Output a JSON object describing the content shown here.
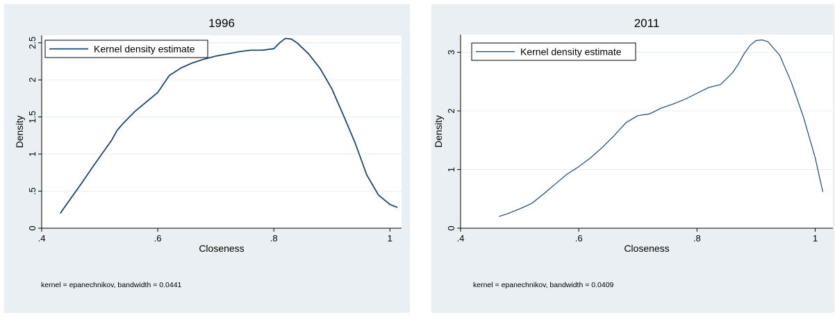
{
  "chart_data": [
    {
      "type": "line",
      "title": "1996",
      "xlabel": "Closeness",
      "ylabel": "Density",
      "xlim": [
        0.4,
        1.02
      ],
      "ylim": [
        0,
        2.6
      ],
      "x_ticks": [
        0.4,
        0.6,
        0.8,
        1.0
      ],
      "x_tick_labels": [
        ".4",
        ".6",
        ".8",
        "1"
      ],
      "y_ticks": [
        0,
        0.5,
        1,
        1.5,
        2,
        2.5
      ],
      "y_tick_labels": [
        "0",
        ".5",
        "1",
        "1.5",
        "2",
        "2.5"
      ],
      "grid": true,
      "legend_position": "top-left",
      "series": [
        {
          "name": "Kernel density estimate",
          "color": "#1a476f",
          "x": [
            0.432,
            0.45,
            0.47,
            0.49,
            0.51,
            0.52,
            0.53,
            0.54,
            0.56,
            0.58,
            0.6,
            0.62,
            0.64,
            0.66,
            0.68,
            0.7,
            0.72,
            0.74,
            0.76,
            0.78,
            0.8,
            0.81,
            0.82,
            0.83,
            0.84,
            0.86,
            0.88,
            0.9,
            0.92,
            0.94,
            0.96,
            0.98,
            1.0,
            1.013
          ],
          "y": [
            0.2,
            0.4,
            0.62,
            0.85,
            1.07,
            1.18,
            1.32,
            1.41,
            1.57,
            1.7,
            1.83,
            2.06,
            2.16,
            2.23,
            2.28,
            2.32,
            2.35,
            2.38,
            2.4,
            2.4,
            2.42,
            2.5,
            2.56,
            2.55,
            2.5,
            2.35,
            2.15,
            1.88,
            1.52,
            1.15,
            0.72,
            0.45,
            0.32,
            0.28
          ]
        }
      ]
    },
    {
      "type": "line",
      "title": "2011",
      "xlabel": "Closeness",
      "ylabel": "Density",
      "xlim": [
        0.4,
        1.03
      ],
      "ylim": [
        0,
        3.3
      ],
      "x_ticks": [
        0.4,
        0.6,
        0.8,
        1.0
      ],
      "x_tick_labels": [
        ".4",
        ".6",
        ".8",
        "1"
      ],
      "y_ticks": [
        0,
        1,
        2,
        3
      ],
      "y_tick_labels": [
        "0",
        "1",
        "2",
        "3"
      ],
      "grid": true,
      "legend_position": "top-left",
      "series": [
        {
          "name": "Kernel density estimate",
          "color": "#1a476f",
          "x": [
            0.465,
            0.48,
            0.5,
            0.52,
            0.54,
            0.56,
            0.58,
            0.6,
            0.62,
            0.64,
            0.66,
            0.68,
            0.7,
            0.72,
            0.74,
            0.76,
            0.78,
            0.8,
            0.82,
            0.84,
            0.86,
            0.87,
            0.88,
            0.89,
            0.9,
            0.91,
            0.92,
            0.94,
            0.96,
            0.98,
            1.0,
            1.013
          ],
          "y": [
            0.2,
            0.25,
            0.33,
            0.42,
            0.58,
            0.75,
            0.92,
            1.05,
            1.2,
            1.38,
            1.58,
            1.8,
            1.92,
            1.95,
            2.05,
            2.12,
            2.2,
            2.3,
            2.4,
            2.45,
            2.65,
            2.8,
            2.98,
            3.12,
            3.2,
            3.21,
            3.18,
            2.95,
            2.48,
            1.9,
            1.2,
            0.62
          ]
        }
      ]
    }
  ],
  "notes": [
    "kernel = epanechnikov, bandwidth = 0.0441",
    "kernel = epanechnikov, bandwidth = 0.0409"
  ]
}
